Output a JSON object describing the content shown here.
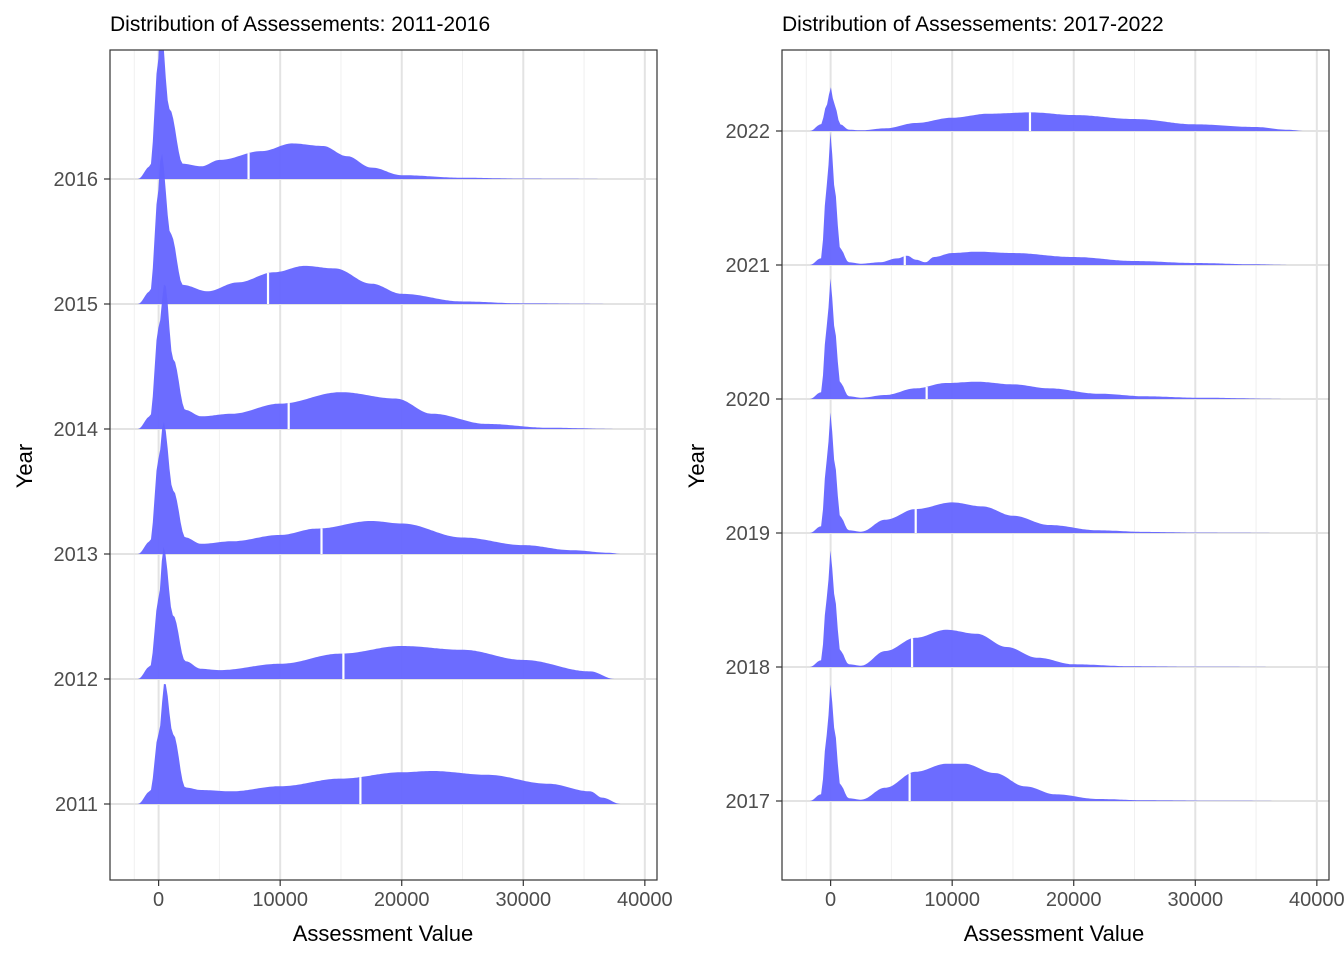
{
  "chart_data": [
    {
      "type": "ridgeline",
      "title": "Distribution of Assessements: 2011-2016",
      "xlabel": "Assessment Value",
      "ylabel": "Year",
      "xlim": [
        -4000,
        41000
      ],
      "x_ticks": [
        0,
        10000,
        20000,
        30000,
        40000
      ],
      "x_tick_labels": [
        "0",
        "10000",
        "20000",
        "30000",
        "40000"
      ],
      "grid": true,
      "fill_color": "#6464ff",
      "median_line_color": "#ffffff",
      "series": [
        {
          "year": "2011",
          "median": 16600,
          "density_x": [
            -1700,
            -700,
            0,
            500,
            1200,
            2200,
            3500,
            6000,
            10000,
            15000,
            20000,
            22500,
            27000,
            32000,
            35500,
            36500,
            38000
          ],
          "density_y": [
            0,
            0.1,
            0.55,
            0.96,
            0.55,
            0.13,
            0.11,
            0.1,
            0.14,
            0.2,
            0.25,
            0.26,
            0.23,
            0.16,
            0.1,
            0.05,
            0
          ]
        },
        {
          "year": "2012",
          "median": 15200,
          "density_x": [
            -1700,
            -700,
            0,
            400,
            1200,
            2200,
            3500,
            5000,
            10000,
            15000,
            20000,
            25000,
            30000,
            35500,
            37500
          ],
          "density_y": [
            0,
            0.1,
            0.63,
            1.04,
            0.5,
            0.14,
            0.08,
            0.07,
            0.12,
            0.2,
            0.26,
            0.23,
            0.15,
            0.06,
            0
          ]
        },
        {
          "year": "2013",
          "median": 13400,
          "density_x": [
            -1700,
            -700,
            0,
            400,
            1200,
            2200,
            3500,
            6000,
            10000,
            13000,
            17500,
            20000,
            25000,
            30000,
            34000,
            37000,
            38000
          ],
          "density_y": [
            0,
            0.1,
            0.75,
            1.04,
            0.5,
            0.13,
            0.08,
            0.1,
            0.15,
            0.2,
            0.26,
            0.24,
            0.13,
            0.07,
            0.03,
            0.01,
            0
          ]
        },
        {
          "year": "2014",
          "median": 10700,
          "density_x": [
            -1700,
            -700,
            0,
            500,
            1200,
            2200,
            3500,
            6000,
            10000,
            15000,
            19500,
            22500,
            27000,
            32000,
            38000
          ],
          "density_y": [
            0,
            0.1,
            0.8,
            1.15,
            0.55,
            0.15,
            0.1,
            0.12,
            0.2,
            0.29,
            0.24,
            0.12,
            0.04,
            0.01,
            0
          ]
        },
        {
          "year": "2015",
          "median": 9000,
          "density_x": [
            -1700,
            -700,
            0,
            200,
            1000,
            2000,
            4000,
            6500,
            9500,
            12000,
            14500,
            17500,
            20000,
            25000,
            30000,
            38000
          ],
          "density_y": [
            0,
            0.1,
            0.9,
            1.2,
            0.55,
            0.15,
            0.1,
            0.17,
            0.25,
            0.3,
            0.28,
            0.16,
            0.08,
            0.02,
            0.005,
            0
          ]
        },
        {
          "year": "2016",
          "median": 7400,
          "density_x": [
            -1700,
            -700,
            0,
            100,
            900,
            2000,
            3500,
            5000,
            8500,
            11000,
            13500,
            15500,
            17500,
            20000,
            25000,
            30000,
            38000
          ],
          "density_y": [
            0,
            0.1,
            0.95,
            1.3,
            0.55,
            0.12,
            0.1,
            0.15,
            0.22,
            0.28,
            0.26,
            0.18,
            0.09,
            0.03,
            0.01,
            0.003,
            0
          ]
        }
      ]
    },
    {
      "type": "ridgeline",
      "title": "Distribution of Assessements: 2017-2022",
      "xlabel": "Assessment Value",
      "ylabel": "Year",
      "xlim": [
        -4000,
        41000
      ],
      "x_ticks": [
        0,
        10000,
        20000,
        30000,
        40000
      ],
      "x_tick_labels": [
        "0",
        "10000",
        "20000",
        "30000",
        "40000"
      ],
      "grid": true,
      "fill_color": "#6464ff",
      "median_line_color": "#ffffff",
      "series": [
        {
          "year": "2017",
          "median": 6500,
          "density_x": [
            -1700,
            -800,
            -300,
            0,
            300,
            800,
            1500,
            2500,
            4500,
            7000,
            9500,
            11000,
            13500,
            16000,
            18500,
            22000,
            26000,
            32000,
            38000
          ],
          "density_y": [
            0,
            0.05,
            0.5,
            0.88,
            0.55,
            0.12,
            0.02,
            0.01,
            0.1,
            0.22,
            0.28,
            0.28,
            0.21,
            0.11,
            0.05,
            0.015,
            0.005,
            0.002,
            0
          ]
        },
        {
          "year": "2018",
          "median": 6700,
          "density_x": [
            -1700,
            -800,
            -300,
            0,
            300,
            800,
            1500,
            2500,
            4500,
            7000,
            9500,
            12000,
            14500,
            17000,
            20000,
            25000,
            30000,
            38000
          ],
          "density_y": [
            0,
            0.05,
            0.52,
            0.88,
            0.55,
            0.12,
            0.02,
            0.01,
            0.12,
            0.22,
            0.28,
            0.25,
            0.15,
            0.07,
            0.02,
            0.005,
            0.002,
            0
          ]
        },
        {
          "year": "2019",
          "median": 7000,
          "density_x": [
            -1700,
            -800,
            -300,
            0,
            300,
            800,
            1500,
            2500,
            4500,
            7000,
            10000,
            12500,
            15000,
            18000,
            22000,
            26000,
            30000,
            38000
          ],
          "density_y": [
            0,
            0.05,
            0.55,
            0.91,
            0.55,
            0.12,
            0.02,
            0.01,
            0.1,
            0.18,
            0.23,
            0.2,
            0.13,
            0.06,
            0.02,
            0.008,
            0.003,
            0
          ]
        },
        {
          "year": "2020",
          "median": 7900,
          "density_x": [
            -1700,
            -800,
            -300,
            0,
            300,
            800,
            1500,
            2500,
            4500,
            7000,
            9500,
            12000,
            15000,
            18000,
            22000,
            26000,
            30000,
            38000
          ],
          "density_y": [
            0,
            0.05,
            0.55,
            0.91,
            0.55,
            0.12,
            0.02,
            0.01,
            0.03,
            0.08,
            0.12,
            0.13,
            0.11,
            0.08,
            0.04,
            0.02,
            0.01,
            0
          ]
        },
        {
          "year": "2021",
          "median": 6100,
          "density_x": [
            -1700,
            -800,
            -300,
            0,
            300,
            800,
            1500,
            2500,
            4000,
            5500,
            6300,
            7000,
            7800,
            8500,
            10000,
            12000,
            15000,
            20000,
            25000,
            30000,
            35000,
            38000
          ],
          "density_y": [
            0,
            0.05,
            0.6,
            1.0,
            0.6,
            0.12,
            0.02,
            0.01,
            0.02,
            0.05,
            0.07,
            0.04,
            0.02,
            0.06,
            0.09,
            0.1,
            0.09,
            0.06,
            0.03,
            0.015,
            0.005,
            0
          ]
        },
        {
          "year": "2022",
          "median": 16400,
          "density_x": [
            -1700,
            -800,
            -300,
            0,
            300,
            800,
            1500,
            2500,
            4500,
            7000,
            10000,
            13000,
            16500,
            20000,
            25000,
            30000,
            35000,
            37500,
            39000
          ],
          "density_y": [
            0,
            0.05,
            0.2,
            0.33,
            0.2,
            0.05,
            0.01,
            0.005,
            0.02,
            0.06,
            0.1,
            0.13,
            0.14,
            0.12,
            0.09,
            0.05,
            0.03,
            0.01,
            0
          ]
        }
      ]
    }
  ]
}
